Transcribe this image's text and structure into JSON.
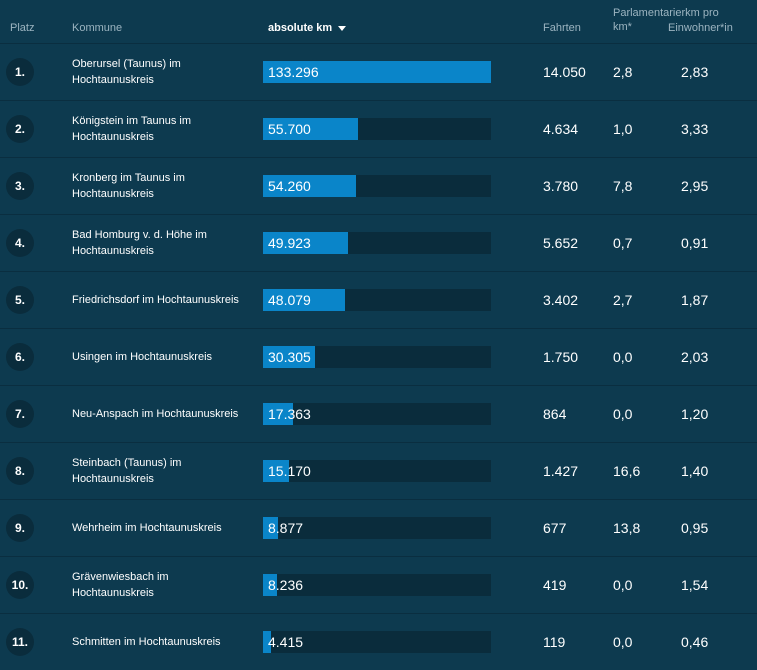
{
  "header": {
    "platz": "Platz",
    "kommune": "Kommune",
    "absolute_km": "absolute km",
    "fahrten": "Fahrten",
    "parl_km": "Parlamentarierkm pro km*",
    "einwohner": "Einwohner*in"
  },
  "colors": {
    "background": "#0d3a4f",
    "bar_fill": "#0a85c9",
    "bar_track": "#0a2c3c"
  },
  "max_km": 133296,
  "rows": [
    {
      "rank": "1.",
      "kommune": "Oberursel (Taunus) im Hochtaunuskreis",
      "km": 133296,
      "km_label": "133.296",
      "fahrten": "14.050",
      "parl": "2,8",
      "einw": "2,83"
    },
    {
      "rank": "2.",
      "kommune": "Königstein im Taunus im Hochtaunuskreis",
      "km": 55700,
      "km_label": "55.700",
      "fahrten": "4.634",
      "parl": "1,0",
      "einw": "3,33"
    },
    {
      "rank": "3.",
      "kommune": "Kronberg im Taunus im Hochtaunuskreis",
      "km": 54260,
      "km_label": "54.260",
      "fahrten": "3.780",
      "parl": "7,8",
      "einw": "2,95"
    },
    {
      "rank": "4.",
      "kommune": "Bad Homburg v. d. Höhe im Hochtaunuskreis",
      "km": 49923,
      "km_label": "49.923",
      "fahrten": "5.652",
      "parl": "0,7",
      "einw": "0,91"
    },
    {
      "rank": "5.",
      "kommune": "Friedrichsdorf im Hochtaunuskreis",
      "km": 48079,
      "km_label": "48.079",
      "fahrten": "3.402",
      "parl": "2,7",
      "einw": "1,87"
    },
    {
      "rank": "6.",
      "kommune": "Usingen im Hochtaunuskreis",
      "km": 30305,
      "km_label": "30.305",
      "fahrten": "1.750",
      "parl": "0,0",
      "einw": "2,03"
    },
    {
      "rank": "7.",
      "kommune": "Neu-Anspach im Hochtaunuskreis",
      "km": 17363,
      "km_label": "17.363",
      "fahrten": "864",
      "parl": "0,0",
      "einw": "1,20"
    },
    {
      "rank": "8.",
      "kommune": "Steinbach (Taunus) im Hochtaunuskreis",
      "km": 15170,
      "km_label": "15.170",
      "fahrten": "1.427",
      "parl": "16,6",
      "einw": "1,40"
    },
    {
      "rank": "9.",
      "kommune": "Wehrheim im Hochtaunuskreis",
      "km": 8877,
      "km_label": "8.877",
      "fahrten": "677",
      "parl": "13,8",
      "einw": "0,95"
    },
    {
      "rank": "10.",
      "kommune": "Grävenwiesbach im Hochtaunuskreis",
      "km": 8236,
      "km_label": "8.236",
      "fahrten": "419",
      "parl": "0,0",
      "einw": "1,54"
    },
    {
      "rank": "11.",
      "kommune": "Schmitten im Hochtaunuskreis",
      "km": 4415,
      "km_label": "4.415",
      "fahrten": "119",
      "parl": "0,0",
      "einw": "0,46"
    }
  ]
}
